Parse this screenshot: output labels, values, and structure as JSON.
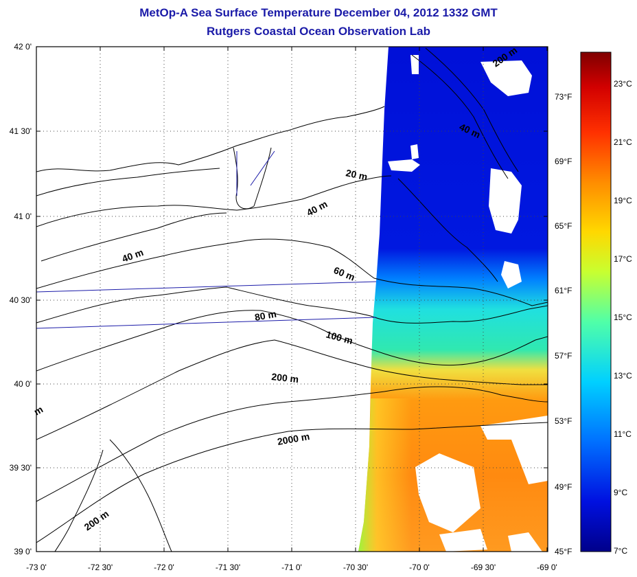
{
  "title": "MetOp-A Sea Surface Temperature December 04, 2012 1332 GMT",
  "subtitle": "Rutgers Coastal Ocean Observation Lab",
  "lat_labels": [
    "42 0'",
    "41 30'",
    "41 0'",
    "40 30'",
    "40 0'",
    "39 30'",
    "39 0'"
  ],
  "lon_labels": [
    "-73 0'",
    "-72 30'",
    "-72 0'",
    "-71 30'",
    "-71 0'",
    "-70 30'",
    "-70 0'",
    "-69 30'",
    "-69 0'"
  ],
  "colorbar": {
    "celsius_labels": [
      "23°C",
      "21°C",
      "19°C",
      "17°C",
      "15°C",
      "13°C",
      "11°C",
      "9°C",
      "7°C"
    ],
    "fahrenheit_labels": [
      "73°F",
      "69°F",
      "65°F",
      "61°F",
      "57°F",
      "53°F",
      "49°F",
      "45°F"
    ],
    "colors": [
      "#7f0000",
      "#d20000",
      "#ff3000",
      "#ff8c00",
      "#ffd800",
      "#c8ff30",
      "#50ffa8",
      "#00d0ff",
      "#0070ff",
      "#0010e0",
      "#00008a"
    ]
  },
  "contour_labels": [
    "200 m",
    "40 m",
    "20 m",
    "40 m",
    "40 m",
    "60 m",
    "80 m",
    "100 m",
    "200 m",
    "2000 m",
    "200 m",
    "m"
  ],
  "chart_data": {
    "type": "heatmap",
    "title": "MetOp-A Sea Surface Temperature December 04, 2012 1332 GMT",
    "subtitle": "Rutgers Coastal Ocean Observation Lab",
    "xlim": [
      -73.0,
      -69.0
    ],
    "ylim": [
      39.0,
      42.0
    ],
    "colorbar_range_c": [
      7,
      24
    ],
    "grid": true
  }
}
